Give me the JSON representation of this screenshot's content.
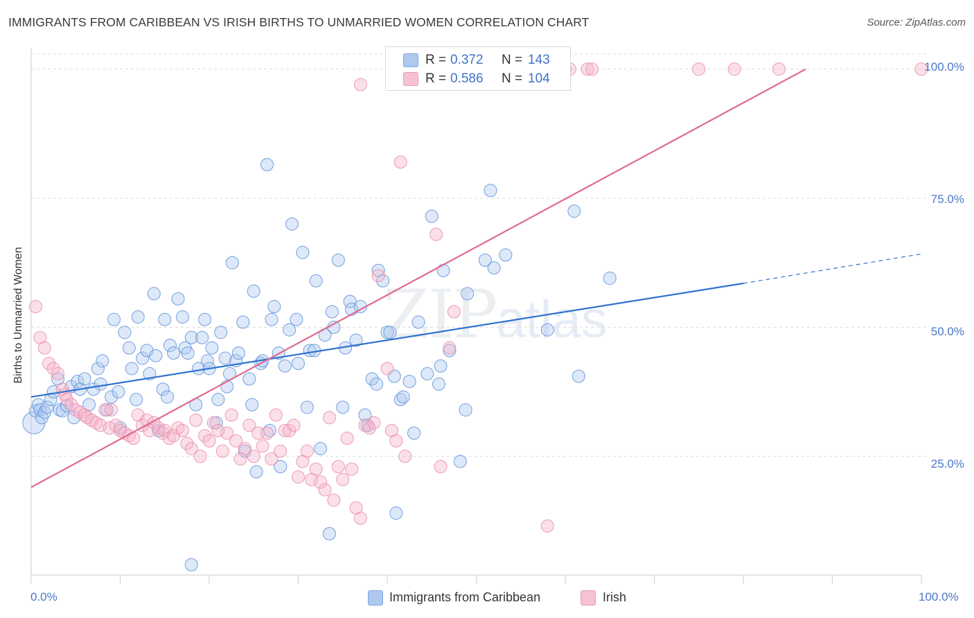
{
  "title": "IMMIGRANTS FROM CARIBBEAN VS IRISH BIRTHS TO UNMARRIED WOMEN CORRELATION CHART",
  "source": "Source: ZipAtlas.com",
  "watermark": {
    "zip": "ZIP",
    "atlas": "atlas"
  },
  "legend": {
    "r_label": "R =",
    "n_label": "N =",
    "rows": [
      {
        "r": "0.372",
        "n": "143",
        "color": "#aec8ee"
      },
      {
        "r": "0.586",
        "n": "104",
        "color": "#f5b6ca"
      }
    ]
  },
  "bottom_legend": [
    "Immigrants from Caribbean",
    "Irish"
  ],
  "chart_data": {
    "type": "scatter",
    "title": "IMMIGRANTS FROM CARIBBEAN VS IRISH BIRTHS TO UNMARRIED WOMEN CORRELATION CHART",
    "xlabel": "",
    "ylabel": "Births to Unmarried Women",
    "xlim": [
      0,
      100
    ],
    "ylim": [
      2,
      104
    ],
    "x_tick_labels": [
      "0.0%",
      "100.0%"
    ],
    "y_ticks": [
      25,
      50,
      75,
      100
    ],
    "y_tick_labels": [
      "25.0%",
      "50.0%",
      "75.0%",
      "100.0%"
    ],
    "grid": true,
    "legend_position": "top-center",
    "series": [
      {
        "name": "Immigrants from Caribbean",
        "color": "#5b8fd9",
        "fill": "#aec8ee",
        "trend": {
          "x": [
            0,
            80
          ],
          "y": [
            36.5,
            58.5
          ],
          "dashed_to": [
            100,
            64.2
          ],
          "color": "#2f72d0"
        },
        "points": [
          [
            0.3,
            31.5
          ],
          [
            0.5,
            33.8
          ],
          [
            0.8,
            35
          ],
          [
            1,
            34
          ],
          [
            1.2,
            32.5
          ],
          [
            1.5,
            33.5
          ],
          [
            1.8,
            34.5
          ],
          [
            2.2,
            36
          ],
          [
            2.5,
            37.5
          ],
          [
            3,
            40
          ],
          [
            3.2,
            34
          ],
          [
            3.5,
            33.8
          ],
          [
            4,
            34.8
          ],
          [
            4.5,
            38.5
          ],
          [
            4.8,
            32.5
          ],
          [
            5.2,
            39.5
          ],
          [
            5.5,
            38
          ],
          [
            6,
            40
          ],
          [
            6.5,
            35
          ],
          [
            7,
            38
          ],
          [
            7.5,
            42
          ],
          [
            7.8,
            39
          ],
          [
            8,
            43.5
          ],
          [
            8.5,
            34
          ],
          [
            9,
            36.5
          ],
          [
            9.3,
            51.5
          ],
          [
            9.8,
            37.5
          ],
          [
            10,
            30.5
          ],
          [
            10.5,
            49
          ],
          [
            11,
            46
          ],
          [
            11.3,
            42
          ],
          [
            11.8,
            36
          ],
          [
            12,
            52
          ],
          [
            12.5,
            44
          ],
          [
            13,
            45.5
          ],
          [
            13.3,
            41
          ],
          [
            13.8,
            56.5
          ],
          [
            14,
            44.5
          ],
          [
            14.3,
            30
          ],
          [
            14.8,
            38
          ],
          [
            15,
            51.5
          ],
          [
            15.3,
            36.5
          ],
          [
            15.6,
            46.5
          ],
          [
            16,
            45
          ],
          [
            16.5,
            55.5
          ],
          [
            17,
            52
          ],
          [
            17.3,
            46
          ],
          [
            17.6,
            45
          ],
          [
            18,
            48
          ],
          [
            18.5,
            35
          ],
          [
            18.8,
            42
          ],
          [
            19.2,
            48
          ],
          [
            19.5,
            51.5
          ],
          [
            19.8,
            43.5
          ],
          [
            20,
            42
          ],
          [
            20.3,
            46
          ],
          [
            20.8,
            31.5
          ],
          [
            21,
            36
          ],
          [
            21.3,
            49
          ],
          [
            21.8,
            44
          ],
          [
            22,
            38.5
          ],
          [
            22.3,
            41
          ],
          [
            22.6,
            62.5
          ],
          [
            23,
            43.5
          ],
          [
            23.3,
            45
          ],
          [
            23.8,
            51
          ],
          [
            24,
            26
          ],
          [
            24.5,
            40
          ],
          [
            24.8,
            35
          ],
          [
            25,
            57
          ],
          [
            25.3,
            22
          ],
          [
            25.8,
            43
          ],
          [
            26,
            43.5
          ],
          [
            26.5,
            81.5
          ],
          [
            26.8,
            30
          ],
          [
            27,
            51.5
          ],
          [
            27.3,
            54
          ],
          [
            27.8,
            45
          ],
          [
            28,
            23
          ],
          [
            28.5,
            42.5
          ],
          [
            29,
            49.5
          ],
          [
            29.3,
            70
          ],
          [
            29.8,
            51.5
          ],
          [
            30,
            43
          ],
          [
            30.5,
            64.5
          ],
          [
            31,
            34.5
          ],
          [
            31.3,
            45.5
          ],
          [
            31.8,
            45.5
          ],
          [
            32,
            59
          ],
          [
            32.5,
            26.5
          ],
          [
            33,
            48.5
          ],
          [
            33.5,
            10
          ],
          [
            33.8,
            53
          ],
          [
            34,
            50
          ],
          [
            34.5,
            63
          ],
          [
            35,
            34.5
          ],
          [
            35.3,
            46
          ],
          [
            35.8,
            55
          ],
          [
            36,
            53.5
          ],
          [
            36.5,
            47.5
          ],
          [
            37,
            54
          ],
          [
            37.5,
            33
          ],
          [
            37.8,
            31
          ],
          [
            38.3,
            40
          ],
          [
            38.8,
            39
          ],
          [
            39,
            61
          ],
          [
            39.5,
            59
          ],
          [
            40,
            49
          ],
          [
            40.3,
            49
          ],
          [
            40.8,
            40.5
          ],
          [
            41,
            14
          ],
          [
            41.5,
            36
          ],
          [
            41.8,
            36.5
          ],
          [
            42.5,
            39.5
          ],
          [
            43,
            29.5
          ],
          [
            43.5,
            51
          ],
          [
            44.5,
            41
          ],
          [
            45,
            71.5
          ],
          [
            45.8,
            39
          ],
          [
            46,
            42.5
          ],
          [
            46.3,
            61
          ],
          [
            47,
            45.5
          ],
          [
            48.2,
            24
          ],
          [
            48.8,
            34
          ],
          [
            49,
            56.5
          ],
          [
            51,
            63
          ],
          [
            51.6,
            76.5
          ],
          [
            52,
            61.5
          ],
          [
            53.3,
            64
          ],
          [
            58,
            49.5
          ],
          [
            61,
            72.5
          ],
          [
            61.5,
            40.5
          ],
          [
            65,
            59.5
          ],
          [
            18,
            4
          ]
        ]
      },
      {
        "name": "Irish",
        "color": "#e98aa8",
        "fill": "#f5b6ca",
        "trend": {
          "x": [
            0,
            87
          ],
          "y": [
            19,
            100
          ],
          "color": "#e0688f"
        },
        "points": [
          [
            0.5,
            54
          ],
          [
            1,
            48
          ],
          [
            1.5,
            46
          ],
          [
            2,
            43
          ],
          [
            2.5,
            42
          ],
          [
            3,
            41
          ],
          [
            3.5,
            38
          ],
          [
            3.8,
            37
          ],
          [
            4,
            36
          ],
          [
            4.5,
            35
          ],
          [
            5,
            34
          ],
          [
            5.5,
            33.5
          ],
          [
            6,
            33
          ],
          [
            6.3,
            32.5
          ],
          [
            6.8,
            32
          ],
          [
            7.3,
            31.5
          ],
          [
            7.8,
            31
          ],
          [
            8.3,
            34
          ],
          [
            8.8,
            30.5
          ],
          [
            9,
            34
          ],
          [
            9.5,
            31
          ],
          [
            10,
            30
          ],
          [
            10.5,
            29.5
          ],
          [
            11,
            29
          ],
          [
            11.5,
            28.5
          ],
          [
            12,
            33
          ],
          [
            12.5,
            31
          ],
          [
            13,
            32
          ],
          [
            13.3,
            30
          ],
          [
            13.8,
            31.5
          ],
          [
            14.3,
            30.5
          ],
          [
            14.8,
            29.5
          ],
          [
            15,
            30
          ],
          [
            15.5,
            28.5
          ],
          [
            16,
            29
          ],
          [
            16.5,
            30.5
          ],
          [
            17,
            30
          ],
          [
            17.5,
            27.5
          ],
          [
            18,
            26.5
          ],
          [
            18.5,
            32
          ],
          [
            19,
            25
          ],
          [
            19.5,
            29
          ],
          [
            20,
            28
          ],
          [
            20.5,
            31.5
          ],
          [
            21,
            30
          ],
          [
            21.5,
            26
          ],
          [
            22,
            29.5
          ],
          [
            22.5,
            33
          ],
          [
            23,
            28
          ],
          [
            23.5,
            24.5
          ],
          [
            24,
            26.5
          ],
          [
            24.5,
            31
          ],
          [
            25,
            25
          ],
          [
            25.5,
            29.5
          ],
          [
            26,
            27
          ],
          [
            26.5,
            29.5
          ],
          [
            27,
            24.5
          ],
          [
            27.5,
            33
          ],
          [
            28,
            26
          ],
          [
            28.5,
            30
          ],
          [
            29,
            30
          ],
          [
            29.5,
            31
          ],
          [
            30,
            21
          ],
          [
            30.5,
            24
          ],
          [
            31,
            26
          ],
          [
            31.5,
            20.5
          ],
          [
            32,
            22.5
          ],
          [
            32.5,
            20
          ],
          [
            33,
            18.5
          ],
          [
            33.5,
            32.5
          ],
          [
            34,
            16.5
          ],
          [
            34.5,
            23
          ],
          [
            35,
            20.5
          ],
          [
            35.5,
            28.5
          ],
          [
            36,
            22.5
          ],
          [
            36.5,
            15
          ],
          [
            37,
            13
          ],
          [
            37.5,
            31
          ],
          [
            38,
            30.5
          ],
          [
            38.5,
            31.5
          ],
          [
            39,
            60
          ],
          [
            40,
            42
          ],
          [
            40.5,
            30
          ],
          [
            41,
            28
          ],
          [
            41.5,
            82
          ],
          [
            42,
            25
          ],
          [
            45.5,
            68
          ],
          [
            46,
            23
          ],
          [
            47,
            46
          ],
          [
            47.5,
            53
          ],
          [
            50,
            100
          ],
          [
            52,
            100
          ],
          [
            55,
            100
          ],
          [
            58,
            11.5
          ],
          [
            60,
            100
          ],
          [
            60.5,
            100
          ],
          [
            62.5,
            100
          ],
          [
            63,
            100
          ],
          [
            75,
            100
          ],
          [
            79,
            100
          ],
          [
            84,
            100
          ],
          [
            100,
            100
          ],
          [
            37,
            97
          ],
          [
            41,
            100
          ]
        ]
      }
    ]
  }
}
